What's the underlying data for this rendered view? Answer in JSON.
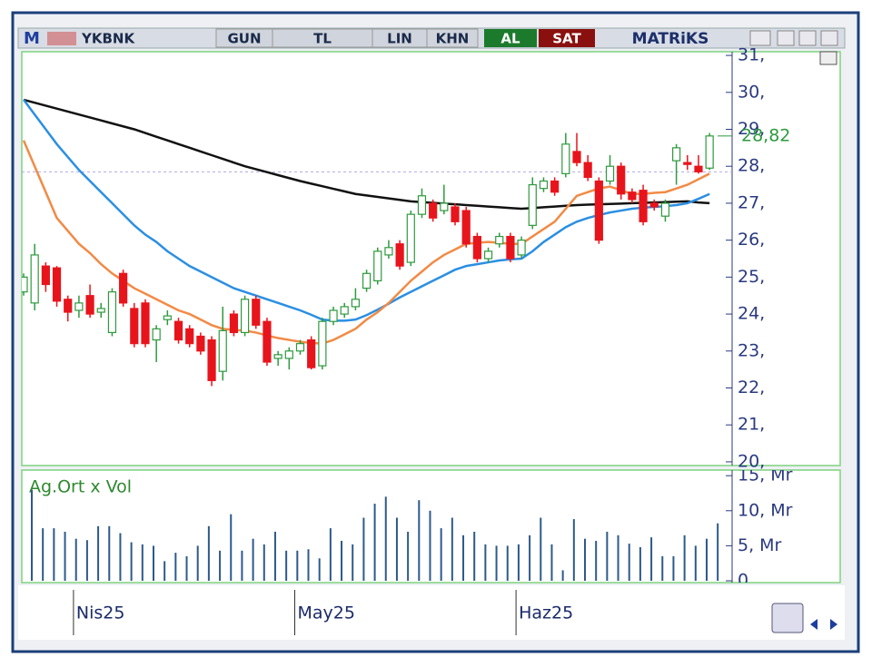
{
  "toolbar": {
    "logo": "M",
    "symbol": "YKBNK",
    "buttons": [
      "GUN",
      "TL",
      "LIN",
      "KHN"
    ],
    "buy": "AL",
    "sell": "SAT",
    "brand": "MATRiKS"
  },
  "chart_data": [
    {
      "type": "candlestick",
      "categories": [
        null,
        null,
        null,
        null,
        null,
        "Nis25",
        null,
        null,
        null,
        null,
        null,
        null,
        null,
        null,
        null,
        null,
        null,
        null,
        null,
        null,
        null,
        null,
        null,
        null,
        null,
        "May25",
        null,
        null,
        null,
        null,
        null,
        null,
        null,
        null,
        null,
        null,
        null,
        null,
        null,
        null,
        null,
        null,
        null,
        null,
        null,
        "Haz25",
        null,
        null,
        null,
        null,
        null,
        null,
        null,
        null,
        null,
        null,
        null,
        null,
        null,
        null,
        null,
        null,
        null
      ],
      "open": [
        24.6,
        24.3,
        25.3,
        25.25,
        24.4,
        24.1,
        24.5,
        24.05,
        23.5,
        25.1,
        24.15,
        24.3,
        23.3,
        23.85,
        23.8,
        23.6,
        23.4,
        23.3,
        22.45,
        24.0,
        23.5,
        24.4,
        23.8,
        22.8,
        22.8,
        23.0,
        23.3,
        22.6,
        23.8,
        24.0,
        24.2,
        24.7,
        24.9,
        25.6,
        25.9,
        25.4,
        26.7,
        27.0,
        26.8,
        26.9,
        26.8,
        26.1,
        25.5,
        25.9,
        26.1,
        25.6,
        26.4,
        27.4,
        27.6,
        27.8,
        28.4,
        28.1,
        27.6,
        27.6,
        28.0,
        27.3,
        27.35,
        27.0,
        26.65,
        28.15,
        28.1,
        28.0,
        27.95
      ],
      "high": [
        25.1,
        25.9,
        25.4,
        25.3,
        24.5,
        24.5,
        24.8,
        24.3,
        24.7,
        25.2,
        24.3,
        24.4,
        23.7,
        24.1,
        23.9,
        23.7,
        23.5,
        23.4,
        24.2,
        24.1,
        24.5,
        24.5,
        23.9,
        23.0,
        23.1,
        23.3,
        23.4,
        23.9,
        24.2,
        24.3,
        24.7,
        25.2,
        25.8,
        26.0,
        26.0,
        26.8,
        27.4,
        27.1,
        27.5,
        27.0,
        26.9,
        26.2,
        25.8,
        26.2,
        26.2,
        26.1,
        27.7,
        27.7,
        27.7,
        28.9,
        28.9,
        28.3,
        27.7,
        28.3,
        28.1,
        27.4,
        27.5,
        27.1,
        27.1,
        28.6,
        28.3,
        28.3,
        28.9
      ],
      "low": [
        24.5,
        24.1,
        24.6,
        24.2,
        23.8,
        23.9,
        23.9,
        23.9,
        23.4,
        24.2,
        23.1,
        23.1,
        22.7,
        23.7,
        23.2,
        23.1,
        22.9,
        22.05,
        22.2,
        23.4,
        23.4,
        23.6,
        22.6,
        22.6,
        22.5,
        22.9,
        22.5,
        22.5,
        23.7,
        23.9,
        24.1,
        24.6,
        24.8,
        25.5,
        25.2,
        25.3,
        26.6,
        26.5,
        26.7,
        26.4,
        25.8,
        25.4,
        25.4,
        25.8,
        25.4,
        25.5,
        26.3,
        27.3,
        27.2,
        27.7,
        28.0,
        27.6,
        25.9,
        27.5,
        27.1,
        27.0,
        26.4,
        26.8,
        26.5,
        27.5,
        27.9,
        27.8,
        27.9
      ],
      "close": [
        25.0,
        25.6,
        24.8,
        24.35,
        24.05,
        24.3,
        24.0,
        24.15,
        24.6,
        24.3,
        23.2,
        23.2,
        23.6,
        23.95,
        23.3,
        23.2,
        23.0,
        22.2,
        23.55,
        23.5,
        24.4,
        23.7,
        22.7,
        22.9,
        23.0,
        23.2,
        22.55,
        23.8,
        24.1,
        24.2,
        24.4,
        25.1,
        25.7,
        25.8,
        25.3,
        26.7,
        27.2,
        26.6,
        27.0,
        26.5,
        25.9,
        25.5,
        25.7,
        26.1,
        25.5,
        26.0,
        27.5,
        27.6,
        27.3,
        28.6,
        28.1,
        27.7,
        26.0,
        28.0,
        27.25,
        27.1,
        26.5,
        26.9,
        27.0,
        28.5,
        28.05,
        27.85,
        28.82
      ],
      "up_color": "#2e9a3e",
      "down_color": "#e8141c",
      "lines": [
        {
          "color": "#111111",
          "values": [
            29.8,
            29.72,
            29.64,
            29.56,
            29.48,
            29.4,
            29.32,
            29.24,
            29.16,
            29.08,
            29.0,
            28.9,
            28.8,
            28.7,
            28.6,
            28.5,
            28.4,
            28.3,
            28.2,
            28.1,
            28.0,
            27.92,
            27.84,
            27.76,
            27.68,
            27.6,
            27.53,
            27.46,
            27.39,
            27.32,
            27.25,
            27.21,
            27.17,
            27.13,
            27.09,
            27.05,
            27.03,
            27.01,
            26.99,
            26.97,
            26.95,
            26.93,
            26.91,
            26.89,
            26.87,
            26.85,
            26.87,
            26.89,
            26.91,
            26.93,
            26.95,
            26.96,
            26.97,
            26.98,
            26.99,
            27.0,
            27.01,
            27.02,
            27.03,
            27.04,
            27.05,
            27.02,
            27.0
          ]
        },
        {
          "color": "#2b8fe3",
          "values": [
            29.8,
            29.4,
            29.0,
            28.6,
            28.25,
            27.9,
            27.6,
            27.3,
            27.0,
            26.7,
            26.4,
            26.15,
            25.95,
            25.7,
            25.5,
            25.3,
            25.15,
            25.0,
            24.85,
            24.7,
            24.6,
            24.5,
            24.4,
            24.3,
            24.2,
            24.1,
            23.98,
            23.85,
            23.82,
            23.82,
            23.85,
            23.97,
            24.12,
            24.28,
            24.45,
            24.6,
            24.75,
            24.9,
            25.05,
            25.2,
            25.3,
            25.35,
            25.4,
            25.45,
            25.48,
            25.5,
            25.7,
            25.95,
            26.15,
            26.35,
            26.5,
            26.6,
            26.68,
            26.75,
            26.8,
            26.85,
            26.88,
            26.9,
            26.92,
            26.95,
            27.0,
            27.12,
            27.25
          ]
        },
        {
          "color": "#f28a45",
          "values": [
            28.7,
            28.0,
            27.3,
            26.6,
            26.25,
            25.9,
            25.65,
            25.35,
            25.1,
            24.9,
            24.7,
            24.55,
            24.4,
            24.25,
            24.1,
            24.0,
            23.85,
            23.7,
            23.6,
            23.57,
            23.55,
            23.5,
            23.42,
            23.35,
            23.3,
            23.25,
            23.22,
            23.2,
            23.3,
            23.45,
            23.6,
            23.85,
            24.05,
            24.3,
            24.6,
            24.9,
            25.15,
            25.4,
            25.6,
            25.75,
            25.9,
            25.93,
            25.95,
            25.93,
            25.9,
            25.9,
            26.1,
            26.3,
            26.5,
            26.85,
            27.2,
            27.3,
            27.4,
            27.45,
            27.35,
            27.25,
            27.25,
            27.28,
            27.3,
            27.4,
            27.5,
            27.65,
            27.8
          ]
        }
      ],
      "reference_line": 27.85,
      "last": {
        "value": 28.82,
        "label": "28,82"
      },
      "ylim": [
        19.9,
        31.1
      ],
      "yticks": [
        {
          "value": 20,
          "label": "20,"
        },
        {
          "value": 21,
          "label": "21,"
        },
        {
          "value": 22,
          "label": "22,"
        },
        {
          "value": 23,
          "label": "23,"
        },
        {
          "value": 24,
          "label": "24,"
        },
        {
          "value": 25,
          "label": "25,"
        },
        {
          "value": 26,
          "label": "26,"
        },
        {
          "value": 27,
          "label": "27,"
        },
        {
          "value": 28,
          "label": "28,"
        },
        {
          "value": 29,
          "label": "29,"
        },
        {
          "value": 30,
          "label": "30,"
        },
        {
          "value": 31,
          "label": "31,"
        }
      ]
    },
    {
      "type": "bar",
      "title": "Ag.Ort x Vol",
      "color": "#2d5a8a",
      "values": [
        13.0,
        7.5,
        7.5,
        7.0,
        6.0,
        5.8,
        7.8,
        7.8,
        6.8,
        5.5,
        5.2,
        5.0,
        2.8,
        4.0,
        3.5,
        5.0,
        7.8,
        4.3,
        9.5,
        4.3,
        6.0,
        5.2,
        7.0,
        4.3,
        4.3,
        4.5,
        3.2,
        7.5,
        5.7,
        5.2,
        9.0,
        11.0,
        12.0,
        9.0,
        7.0,
        11.5,
        10.0,
        7.5,
        9.0,
        6.5,
        7.0,
        5.2,
        5.0,
        5.0,
        5.2,
        6.5,
        9.0,
        5.2,
        1.5,
        8.8,
        6.0,
        5.7,
        7.0,
        6.5,
        5.3,
        4.8,
        6.2,
        3.5,
        3.5,
        6.5,
        5.0,
        6.0,
        8.2
      ],
      "ylim": [
        0,
        15.8
      ],
      "yticks": [
        0,
        {
          "value": 5,
          "label": "5, Mr"
        },
        {
          "value": 10,
          "label": "10, Mr"
        },
        {
          "value": 15,
          "label": "15, Mr"
        }
      ]
    }
  ]
}
